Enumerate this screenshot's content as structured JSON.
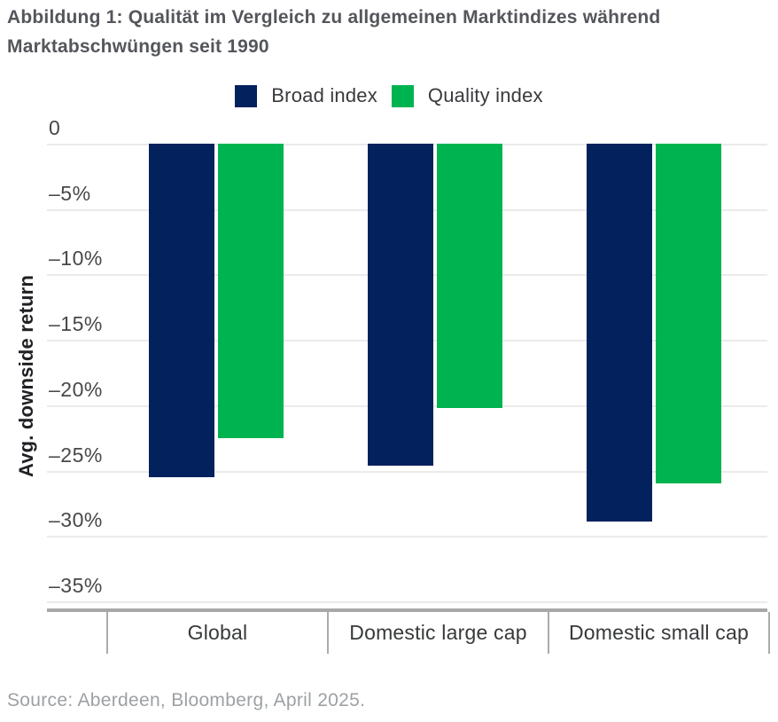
{
  "title": {
    "line1": "Abbildung 1: Qualität im Vergleich zu allgemeinen Marktindizes während",
    "line2": "Marktabschwüngen seit 1990"
  },
  "legend": {
    "items": [
      {
        "label": "Broad index",
        "color": "#03215C"
      },
      {
        "label": "Quality index",
        "color": "#00B351"
      }
    ]
  },
  "y_axis": {
    "title": "Avg. downside return",
    "ticks": [
      "0",
      "–5%",
      "–10%",
      "–15%",
      "–20%",
      "–25%",
      "–30%",
      "–35%"
    ]
  },
  "source": {
    "text": "Source: Aberdeen, Bloomberg, April 2025."
  },
  "colors": {
    "broad_index": "#03215C",
    "quality_index": "#00B351",
    "title_text": "#54565B",
    "gridline": "#EBEBEB",
    "axis_baseline": "#A8A8A8",
    "source_text": "#9DA1A4"
  },
  "chart_data": {
    "type": "bar",
    "categories": [
      "Global",
      "Domestic large cap",
      "Domestic small cap"
    ],
    "series": [
      {
        "name": "Broad index",
        "color": "#03215C",
        "values": [
          -25.5,
          -24.6,
          -28.9
        ]
      },
      {
        "name": "Quality index",
        "color": "#00B351",
        "values": [
          -22.5,
          -20.2,
          -26.0
        ]
      }
    ],
    "title": "Abbildung 1: Qualität im Vergleich zu allgemeinen Marktindizes während Marktabschwüngen seit 1990",
    "xlabel": "",
    "ylabel": "Avg. downside return",
    "ylim": [
      -35,
      0
    ],
    "y_tick_step": 5,
    "grid": true,
    "legend_position": "top"
  }
}
